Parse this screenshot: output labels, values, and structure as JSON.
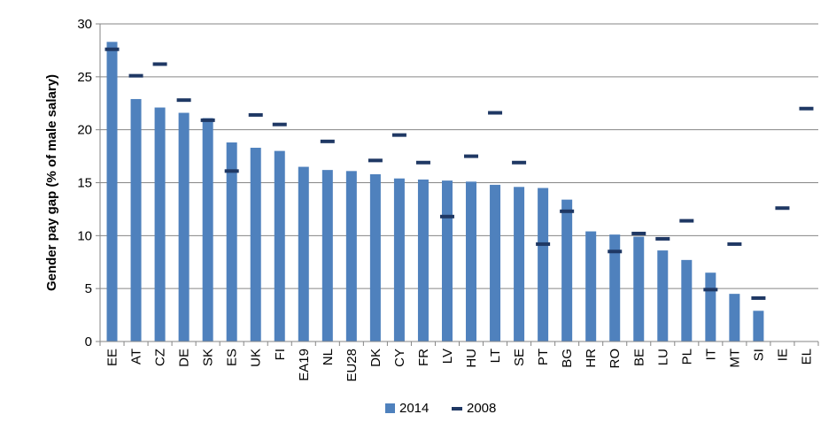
{
  "chart_data": {
    "type": "bar",
    "title": "",
    "xlabel": "",
    "ylabel": "Gender pay gap (% of male salary)",
    "ylim": [
      0,
      30
    ],
    "yticks": [
      0,
      5,
      10,
      15,
      20,
      25,
      30
    ],
    "grid": "horizontal",
    "legend_position": "bottom",
    "categories": [
      "EE",
      "AT",
      "CZ",
      "DE",
      "SK",
      "ES",
      "UK",
      "FI",
      "EA19",
      "NL",
      "EU28",
      "DK",
      "CY",
      "FR",
      "LV",
      "HU",
      "LT",
      "SE",
      "PT",
      "BG",
      "HR",
      "RO",
      "BE",
      "LU",
      "PL",
      "IT",
      "MT",
      "SI",
      "IE",
      "EL"
    ],
    "series": [
      {
        "name": "2014",
        "kind": "bar",
        "color": "#4F81BD",
        "values": [
          28.3,
          22.9,
          22.1,
          21.6,
          21.1,
          18.8,
          18.3,
          18.0,
          16.5,
          16.2,
          16.1,
          15.8,
          15.4,
          15.3,
          15.2,
          15.1,
          14.8,
          14.6,
          14.5,
          13.4,
          10.4,
          10.1,
          9.9,
          8.6,
          7.7,
          6.5,
          4.5,
          2.9,
          null,
          null
        ]
      },
      {
        "name": "2008",
        "kind": "marker",
        "color": "#1F3864",
        "values": [
          27.6,
          25.1,
          26.2,
          22.8,
          20.9,
          16.1,
          21.4,
          20.5,
          null,
          18.9,
          null,
          17.1,
          19.5,
          16.9,
          11.8,
          17.5,
          21.6,
          16.9,
          9.2,
          12.3,
          null,
          8.5,
          10.2,
          9.7,
          11.4,
          4.9,
          9.2,
          4.1,
          12.6,
          22.0
        ]
      }
    ]
  }
}
